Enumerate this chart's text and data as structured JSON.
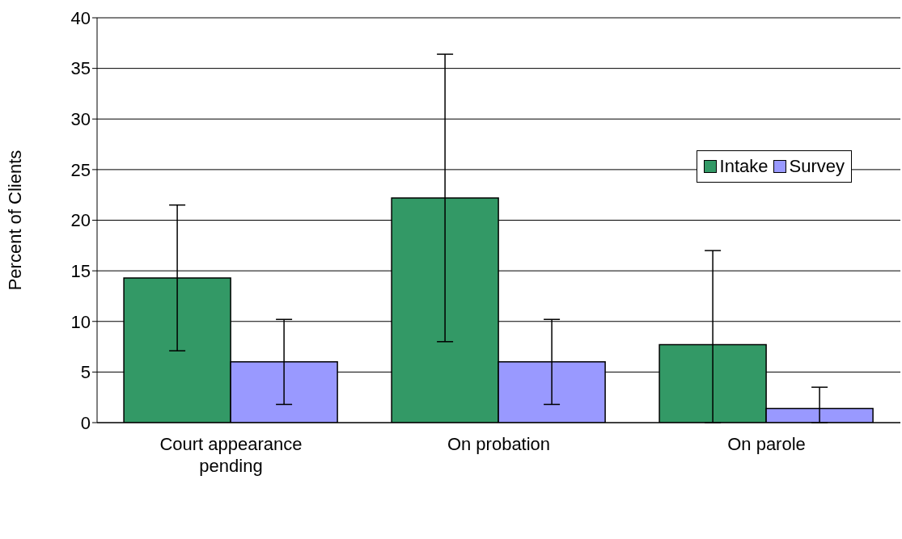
{
  "chart_data": {
    "type": "bar",
    "ylabel": "Percent of Clients",
    "categories": [
      "Court appearance pending",
      "On probation",
      "On parole"
    ],
    "series": [
      {
        "name": "Intake",
        "color": "#339966",
        "values": [
          14.3,
          22.2,
          7.7
        ],
        "errors": [
          7.2,
          14.2,
          [
            0,
            17.0
          ]
        ]
      },
      {
        "name": "Survey",
        "color": "#9999ff",
        "values": [
          6.0,
          6.0,
          1.4
        ],
        "errors": [
          4.2,
          4.2,
          [
            0,
            3.5
          ]
        ]
      }
    ],
    "ylim": [
      0,
      40
    ],
    "yticks": [
      0,
      5,
      10,
      15,
      20,
      25,
      30,
      35,
      40
    ],
    "grid": "y",
    "legend": "top right"
  }
}
